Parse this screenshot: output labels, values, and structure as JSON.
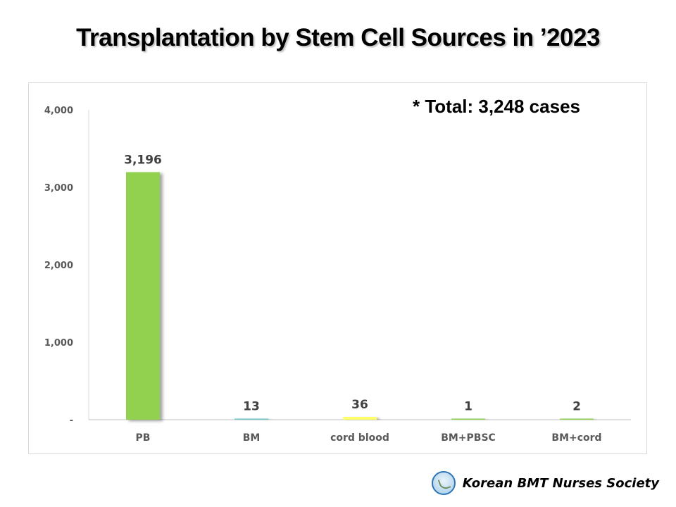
{
  "title": "Transplantation by Stem Cell Sources in ’2023",
  "annotation": "* Total: 3,248 cases",
  "footer": {
    "organization": "Korean BMT Nurses Society",
    "logo_icon": "society-logo-icon"
  },
  "chart_data": {
    "type": "bar",
    "categories": [
      "PB",
      "BM",
      "cord blood",
      "BM+PBSC",
      "BM+cord"
    ],
    "values": [
      3196,
      13,
      36,
      1,
      2
    ],
    "data_labels": [
      "3,196",
      "13",
      "36",
      "1",
      "2"
    ],
    "colors": [
      "#92d050",
      "#70c6c6",
      "#ffff66",
      "#92d050",
      "#92d050"
    ],
    "ylim": [
      0,
      4000
    ],
    "yticks": [
      0,
      1000,
      2000,
      3000,
      4000
    ],
    "ytick_labels": [
      "-",
      "1,000",
      "2,000",
      "3,000",
      "4,000"
    ],
    "grid": false,
    "legend": "none"
  }
}
